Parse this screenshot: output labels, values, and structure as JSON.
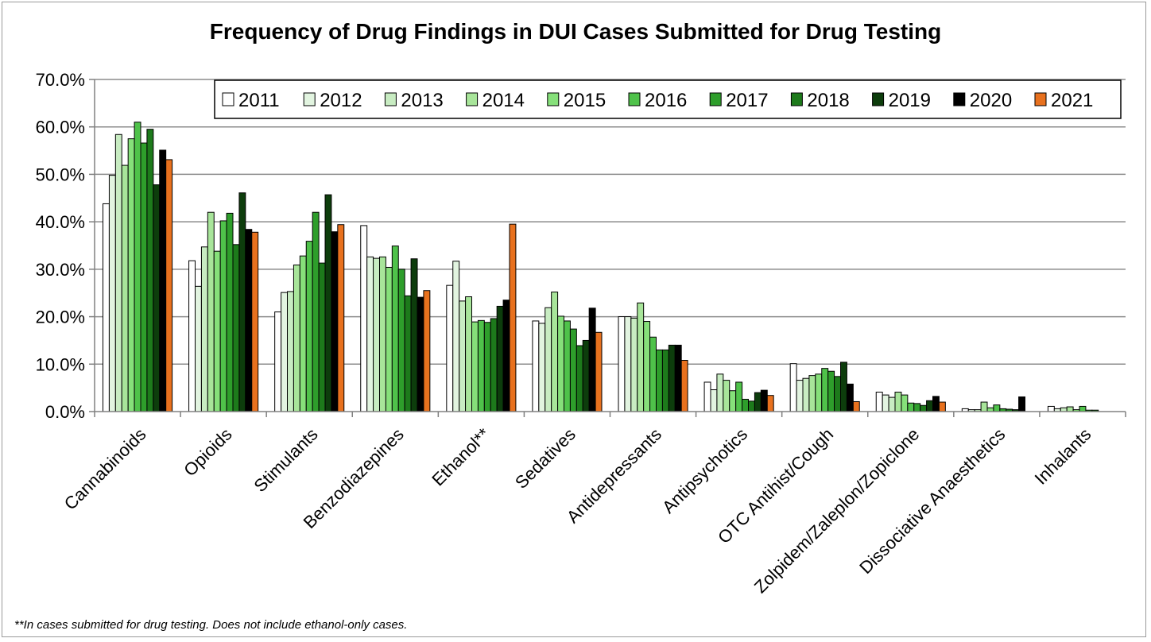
{
  "chart_data": {
    "type": "bar",
    "title": "Frequency of Drug Findings in DUI Cases Submitted for Drug Testing",
    "footnote": "**In cases submitted for drug testing. Does not include ethanol-only cases.",
    "categories": [
      "Cannabinoids",
      "Opioids",
      "Stimulants",
      "Benzodiazepines",
      "Ethanol**",
      "Sedatives",
      "Antidepressants",
      "Antipsychotics",
      "OTC Antihist/Cough",
      "Zolpidem/Zaleplon/Zopiclone",
      "Dissociative Anaesthetics",
      "Inhalants"
    ],
    "ylim": [
      0,
      70
    ],
    "yticks": [
      "0.0%",
      "10.0%",
      "20.0%",
      "30.0%",
      "40.0%",
      "50.0%",
      "60.0%",
      "70.0%"
    ],
    "grid": true,
    "legend_position": "top-right",
    "series": [
      {
        "name": "2011",
        "color": "#ffffff",
        "values": [
          43.8,
          31.8,
          21.0,
          39.2,
          26.6,
          19.1,
          20.0,
          6.2,
          10.1,
          4.1,
          0.6,
          1.1
        ]
      },
      {
        "name": "2012",
        "color": "#e2f4e0",
        "values": [
          49.8,
          26.4,
          25.1,
          32.6,
          31.7,
          18.6,
          20.0,
          4.6,
          6.6,
          3.5,
          0.4,
          0.6
        ]
      },
      {
        "name": "2013",
        "color": "#c8ecc2",
        "values": [
          58.4,
          34.7,
          25.3,
          32.3,
          23.3,
          21.9,
          19.7,
          7.9,
          7.0,
          3.0,
          0.4,
          0.8
        ]
      },
      {
        "name": "2014",
        "color": "#a8e59a",
        "values": [
          51.9,
          42.0,
          30.9,
          32.6,
          24.2,
          25.2,
          22.9,
          6.6,
          7.6,
          4.1,
          2.0,
          1.0
        ]
      },
      {
        "name": "2015",
        "color": "#86e07a",
        "values": [
          57.5,
          33.8,
          32.8,
          30.4,
          18.9,
          20.1,
          19.0,
          4.4,
          7.9,
          3.5,
          0.8,
          0.4
        ]
      },
      {
        "name": "2016",
        "color": "#4fc24a",
        "values": [
          61.0,
          40.2,
          35.9,
          34.9,
          19.2,
          19.1,
          15.7,
          6.2,
          9.1,
          1.8,
          1.4,
          1.1
        ]
      },
      {
        "name": "2017",
        "color": "#2e9e2b",
        "values": [
          56.6,
          41.8,
          42.0,
          30.0,
          18.8,
          17.4,
          13.0,
          2.6,
          8.5,
          1.7,
          0.6,
          0.3
        ]
      },
      {
        "name": "2018",
        "color": "#1d7a1b",
        "values": [
          59.5,
          35.2,
          31.3,
          24.4,
          19.6,
          13.9,
          13.0,
          2.2,
          7.4,
          1.3,
          0.5,
          0.3
        ]
      },
      {
        "name": "2019",
        "color": "#0d3d0c",
        "values": [
          47.8,
          46.1,
          45.7,
          32.2,
          22.2,
          15.0,
          14.0,
          4.0,
          10.4,
          2.3,
          0.4,
          0.0
        ]
      },
      {
        "name": "2020",
        "color": "#000000",
        "values": [
          55.1,
          38.4,
          37.9,
          24.1,
          23.5,
          21.8,
          14.0,
          4.5,
          5.8,
          3.2,
          3.1,
          0.0
        ]
      },
      {
        "name": "2021",
        "color": "#e8711e",
        "values": [
          53.1,
          37.8,
          39.4,
          25.5,
          39.5,
          16.7,
          10.8,
          3.4,
          2.1,
          2.0,
          0.0,
          0.0
        ]
      }
    ]
  }
}
